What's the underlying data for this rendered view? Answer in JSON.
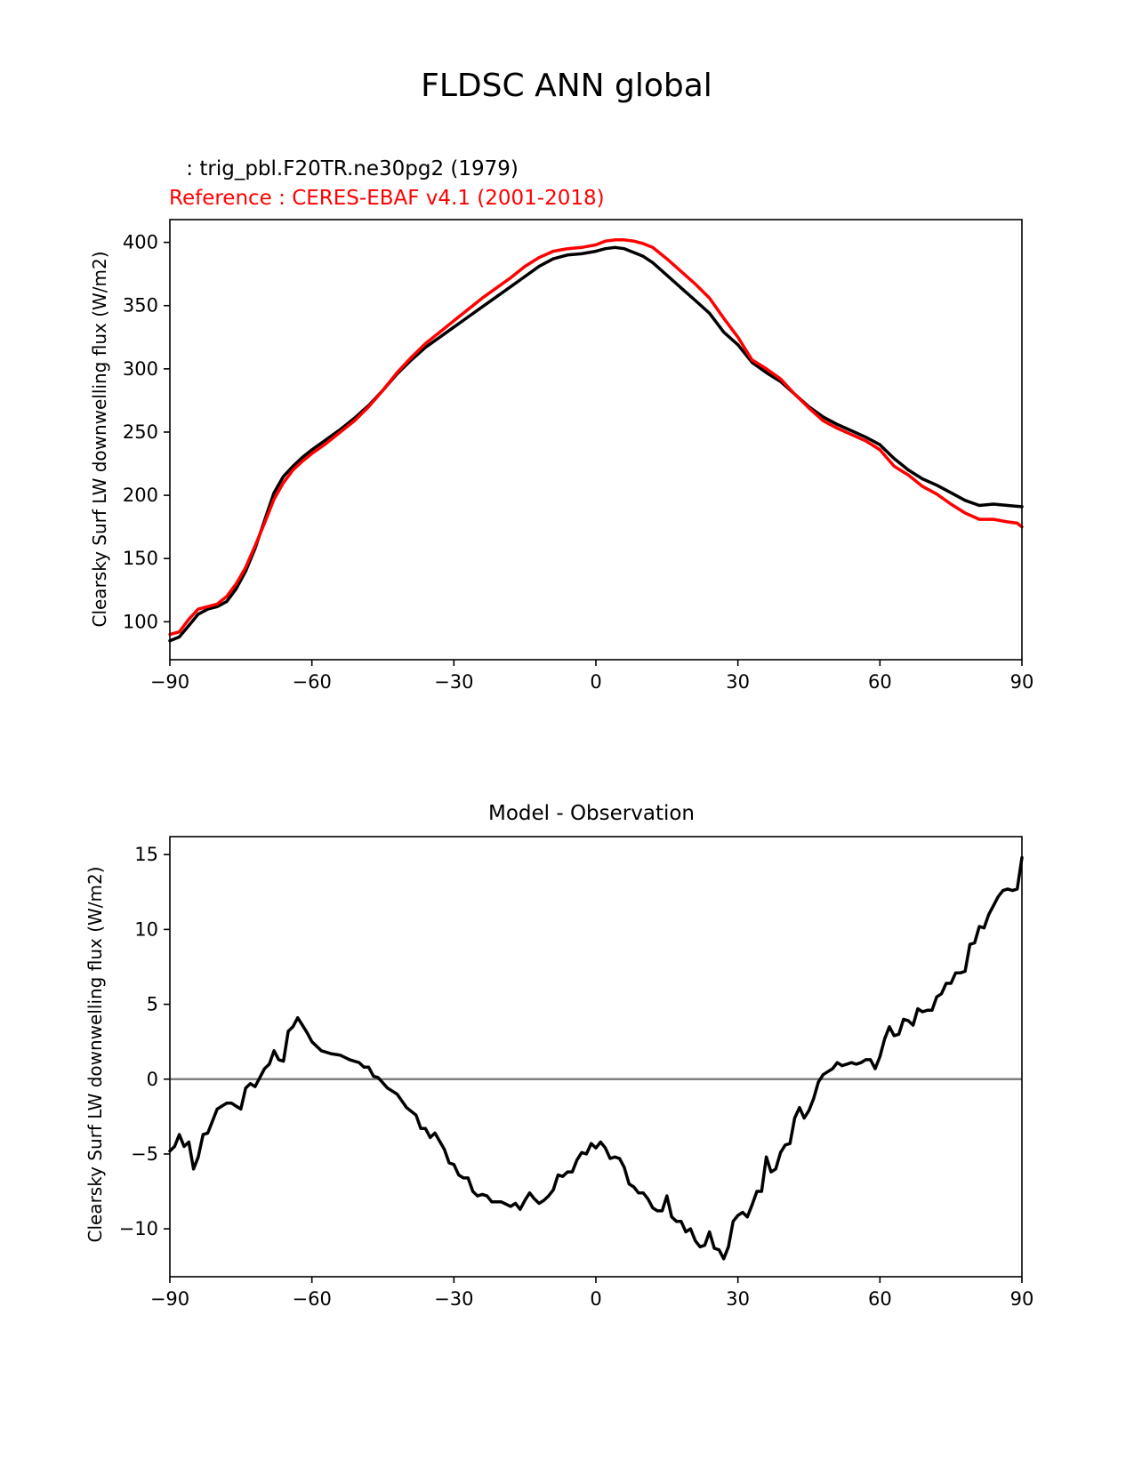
{
  "figure": {
    "title": "FLDSC ANN global"
  },
  "chart_data": [
    {
      "type": "line",
      "test_label": " : trig_pbl.F20TR.ne30pg2 (1979)",
      "ref_label": "Reference : CERES-EBAF v4.1 (2001-2018)",
      "xlabel": "",
      "ylabel": "Clearsky Surf LW downwelling flux (W/m2)",
      "xlim": [
        -90,
        90
      ],
      "ylim": [
        70,
        418
      ],
      "xticks": [
        -90,
        -60,
        -30,
        0,
        30,
        60,
        90
      ],
      "xtick_labels": [
        "−90",
        "−60",
        "−30",
        "0",
        "30",
        "60",
        "90"
      ],
      "yticks": [
        100,
        150,
        200,
        250,
        300,
        350,
        400
      ],
      "ytick_labels": [
        "100",
        "150",
        "200",
        "250",
        "300",
        "350",
        "400"
      ],
      "grid": false,
      "series": [
        {
          "color": "#000000",
          "x": [
            -90,
            -88,
            -86,
            -84,
            -82,
            -80,
            -78,
            -76,
            -74,
            -72,
            -70,
            -68,
            -66,
            -64,
            -62,
            -60,
            -57,
            -54,
            -51,
            -48,
            -45,
            -42,
            -39,
            -36,
            -33,
            -30,
            -27,
            -24,
            -21,
            -18,
            -15,
            -12,
            -9,
            -6,
            -3,
            0,
            2,
            4,
            6,
            8,
            10,
            12,
            15,
            18,
            21,
            24,
            27,
            30,
            33,
            36,
            39,
            42,
            45,
            48,
            51,
            54,
            57,
            60,
            63,
            66,
            69,
            72,
            75,
            78,
            81,
            84,
            87,
            90
          ],
          "y": [
            85,
            88,
            97,
            106,
            110,
            112,
            116,
            126,
            140,
            158,
            180,
            202,
            215,
            223,
            230,
            236,
            244,
            252,
            261,
            271,
            283,
            296,
            307,
            317,
            325,
            333,
            341,
            349,
            357,
            365,
            373,
            381,
            387,
            390,
            391,
            393,
            395,
            396,
            395,
            392,
            389,
            384,
            374,
            364,
            354,
            344,
            329,
            319,
            305,
            297,
            290,
            280,
            270,
            262,
            256,
            251,
            246,
            240,
            229,
            220,
            213,
            208,
            202,
            196,
            192,
            193,
            192,
            191
          ]
        },
        {
          "color": "#ff0000",
          "x": [
            -90,
            -88,
            -86,
            -84,
            -82,
            -80,
            -78,
            -76,
            -74,
            -72,
            -70,
            -68,
            -66,
            -64,
            -62,
            -60,
            -57,
            -54,
            -51,
            -48,
            -45,
            -42,
            -39,
            -36,
            -33,
            -30,
            -27,
            -24,
            -21,
            -18,
            -15,
            -12,
            -9,
            -6,
            -3,
            0,
            2,
            4,
            6,
            8,
            10,
            12,
            15,
            18,
            21,
            24,
            27,
            30,
            33,
            36,
            39,
            42,
            45,
            48,
            51,
            54,
            57,
            60,
            63,
            66,
            69,
            72,
            75,
            78,
            81,
            84,
            87,
            89,
            90
          ],
          "y": [
            90,
            92,
            102,
            110,
            112,
            114,
            120,
            130,
            143,
            160,
            178,
            197,
            210,
            220,
            227,
            233,
            241,
            250,
            259,
            270,
            283,
            297,
            309,
            320,
            329,
            338,
            347,
            356,
            364,
            372,
            381,
            388,
            393,
            395,
            396,
            398,
            401,
            402,
            402,
            401,
            399,
            396,
            387,
            377,
            367,
            356,
            340,
            325,
            307,
            300,
            292,
            280,
            269,
            259,
            253,
            248,
            243,
            236,
            223,
            216,
            207,
            201,
            193,
            186,
            181,
            181,
            179,
            178,
            175
          ]
        }
      ]
    },
    {
      "type": "line",
      "title": "Model - Observation",
      "xlabel": "",
      "ylabel": "Clearsky Surf LW downwelling flux (W/m2)",
      "xlim": [
        -90,
        90
      ],
      "ylim": [
        -13.2,
        16.2
      ],
      "xticks": [
        -90,
        -60,
        -30,
        0,
        30,
        60,
        90
      ],
      "xtick_labels": [
        "−90",
        "−60",
        "−30",
        "0",
        "30",
        "60",
        "90"
      ],
      "yticks": [
        -10,
        -5,
        0,
        5,
        10,
        15
      ],
      "ytick_labels": [
        "−10",
        "−5",
        "0",
        "5",
        "10",
        "15"
      ],
      "grid": false,
      "zero_line_color": "#808080",
      "series": [
        {
          "color": "#000000",
          "x": [
            -90,
            -89,
            -88,
            -87,
            -86,
            -85,
            -84,
            -83,
            -82,
            -80,
            -78,
            -77,
            -76,
            -75,
            -74,
            -73,
            -72,
            -71,
            -70,
            -69,
            -68,
            -67,
            -66,
            -65,
            -64,
            -63,
            -62,
            -61,
            -60,
            -58,
            -56,
            -54,
            -52,
            -50,
            -49,
            -48,
            -47,
            -46,
            -44,
            -43,
            -42,
            -40,
            -38,
            -37,
            -36,
            -35,
            -34,
            -32,
            -31,
            -30,
            -29,
            -28,
            -27,
            -26,
            -25,
            -24,
            -23,
            -22,
            -20,
            -18,
            -17,
            -16,
            -15,
            -14,
            -13,
            -12,
            -11,
            -10,
            -9,
            -8,
            -7,
            -6,
            -5,
            -4,
            -3,
            -2,
            -1,
            0,
            1,
            2,
            3,
            4,
            5,
            6,
            7,
            8,
            9,
            10,
            11,
            12,
            13,
            14,
            15,
            16,
            17,
            18,
            19,
            20,
            21,
            22,
            23,
            24,
            25,
            26,
            27,
            28,
            29,
            30,
            31,
            32,
            33,
            34,
            35,
            36,
            37,
            38,
            39,
            40,
            41,
            42,
            43,
            44,
            45,
            46,
            47,
            48,
            49,
            50,
            51,
            52,
            53,
            54,
            55,
            56,
            57,
            58,
            59,
            60,
            61,
            62,
            63,
            64,
            65,
            66,
            67,
            68,
            69,
            70,
            71,
            72,
            73,
            74,
            75,
            76,
            77,
            78,
            79,
            80,
            81,
            82,
            83,
            84,
            85,
            86,
            87,
            88,
            89,
            90
          ],
          "y": [
            -4.8,
            -4.5,
            -3.7,
            -4.5,
            -4.2,
            -6.0,
            -5.2,
            -3.7,
            -3.6,
            -2.0,
            -1.6,
            -1.6,
            -1.8,
            -2.0,
            -0.6,
            -0.3,
            -0.5,
            0.1,
            0.7,
            1.0,
            1.9,
            1.3,
            1.2,
            3.2,
            3.5,
            4.1,
            3.6,
            3.1,
            2.5,
            1.9,
            1.7,
            1.6,
            1.3,
            1.1,
            0.8,
            0.8,
            0.2,
            0.1,
            -0.6,
            -0.8,
            -1.0,
            -1.9,
            -2.4,
            -3.3,
            -3.3,
            -3.9,
            -3.6,
            -4.7,
            -5.6,
            -5.7,
            -6.4,
            -6.6,
            -6.6,
            -7.5,
            -7.8,
            -7.7,
            -7.8,
            -8.2,
            -8.2,
            -8.5,
            -8.3,
            -8.7,
            -8.1,
            -7.6,
            -8.0,
            -8.3,
            -8.1,
            -7.8,
            -7.4,
            -6.4,
            -6.5,
            -6.2,
            -6.2,
            -5.4,
            -4.9,
            -5.0,
            -4.3,
            -4.6,
            -4.2,
            -4.6,
            -5.3,
            -5.2,
            -5.3,
            -5.9,
            -7.0,
            -7.2,
            -7.6,
            -7.6,
            -8.0,
            -8.6,
            -8.8,
            -8.8,
            -7.8,
            -9.2,
            -9.5,
            -9.5,
            -10.2,
            -10.0,
            -10.8,
            -11.2,
            -11.1,
            -10.2,
            -11.3,
            -11.4,
            -12.0,
            -11.2,
            -9.5,
            -9.1,
            -8.9,
            -9.2,
            -8.4,
            -7.5,
            -7.5,
            -5.2,
            -6.2,
            -6.0,
            -4.9,
            -4.4,
            -4.3,
            -2.6,
            -1.9,
            -2.6,
            -2.1,
            -1.3,
            -0.2,
            0.3,
            0.5,
            0.7,
            1.1,
            0.9,
            1.0,
            1.1,
            1.0,
            1.1,
            1.3,
            1.3,
            0.7,
            1.5,
            2.7,
            3.5,
            2.9,
            3.0,
            4.0,
            3.9,
            3.6,
            4.7,
            4.5,
            4.6,
            4.6,
            5.5,
            5.7,
            6.4,
            6.4,
            7.1,
            7.1,
            7.2,
            9.0,
            9.1,
            10.2,
            10.1,
            11.0,
            11.6,
            12.2,
            12.6,
            12.7,
            12.6,
            12.7,
            14.8
          ]
        }
      ]
    }
  ]
}
